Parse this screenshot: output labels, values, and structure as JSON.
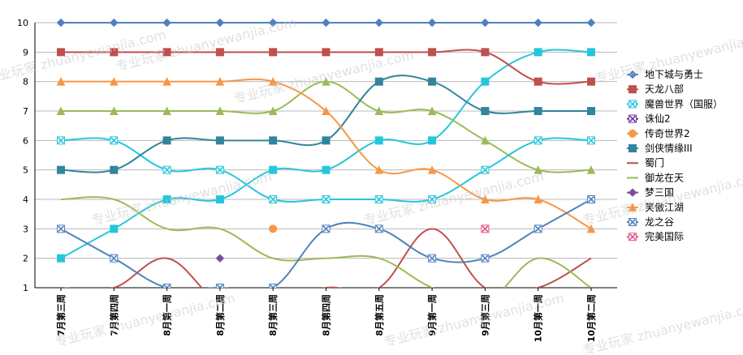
{
  "chart_data": {
    "type": "line",
    "categories": [
      "7月第三周",
      "7月第四周",
      "8月第一周",
      "8月第二周",
      "8月第三周",
      "8月第四周",
      "8月第五周",
      "9月第一周",
      "9月第三周",
      "10月第一周",
      "10月第二周"
    ],
    "ylim": [
      1,
      10
    ],
    "yticks": [
      "1",
      "2",
      "3",
      "4",
      "5",
      "6",
      "7",
      "8",
      "9",
      "10"
    ],
    "grid": true,
    "legend_position": "right",
    "series": [
      {
        "name": "地下城与勇士",
        "color": "#4f81bd",
        "marker": "diamond",
        "values": [
          10,
          10,
          10,
          10,
          10,
          10,
          10,
          10,
          10,
          10,
          10
        ]
      },
      {
        "name": "天龙八部",
        "color": "#c0504d",
        "marker": "square",
        "values": [
          9,
          9,
          9,
          9,
          9,
          9,
          9,
          9,
          9,
          8,
          8
        ]
      },
      {
        "name": "魔兽世界（国服）",
        "color": "#26c6da",
        "marker": "x",
        "values": [
          6,
          6,
          5,
          5,
          4,
          4,
          4,
          4,
          5,
          6,
          6
        ]
      },
      {
        "name": "诛仙2",
        "color": "#7030a0",
        "marker": "x",
        "values": [
          null,
          null,
          null,
          null,
          null,
          null,
          null,
          null,
          null,
          null,
          null
        ]
      },
      {
        "name": "传奇世界2",
        "color": "#f79646",
        "marker": "circle",
        "values": [
          null,
          null,
          null,
          null,
          3,
          null,
          null,
          null,
          null,
          null,
          null
        ]
      },
      {
        "name": "剑侠情缘III",
        "color": "#31859c",
        "marker": "square",
        "values": [
          5,
          5,
          6,
          6,
          6,
          6,
          8,
          8,
          7,
          7,
          7
        ]
      },
      {
        "name": "蜀门",
        "color": "#c0504d",
        "marker": "none",
        "values": [
          1,
          1,
          2,
          0.5,
          0.5,
          1,
          1,
          3,
          1,
          1,
          2
        ]
      },
      {
        "name": "御龙在天",
        "color": "#9bbb59",
        "marker": "none",
        "values": [
          4,
          4,
          3,
          3,
          2,
          2,
          2,
          1,
          0.5,
          2,
          1
        ]
      },
      {
        "name": "梦三国",
        "color": "#7d4b9e",
        "marker": "diamond",
        "values": [
          null,
          null,
          null,
          2,
          null,
          null,
          null,
          null,
          null,
          null,
          null
        ]
      },
      {
        "name": "笑傲江湖",
        "color": "#f79646",
        "marker": "triangle",
        "values": [
          8,
          8,
          8,
          8,
          8,
          7,
          5,
          5,
          4,
          4,
          3
        ]
      },
      {
        "name": "龙之谷",
        "color": "#4f81bd",
        "marker": "x",
        "values": [
          3,
          2,
          1,
          1,
          1,
          3,
          3,
          2,
          2,
          3,
          4
        ]
      },
      {
        "name": "完美国际",
        "color": "#e0508c",
        "marker": "x",
        "values": [
          null,
          null,
          null,
          null,
          null,
          null,
          null,
          null,
          3,
          null,
          null
        ]
      }
    ],
    "extra_series": [
      {
        "name": "魔兽世界（国服）",
        "color": "#26c6da",
        "marker": "square",
        "values": [
          2,
          3,
          4,
          4,
          5,
          5,
          6,
          6,
          8,
          9,
          9
        ]
      },
      {
        "name": "御龙在天",
        "color": "#9bbb59",
        "marker": "triangle",
        "values": [
          7,
          7,
          7,
          7,
          7,
          8,
          7,
          7,
          6,
          5,
          5
        ]
      },
      {
        "name": "龙之谷",
        "color": "#26c6da",
        "marker": "x",
        "values": [
          null,
          null,
          null,
          null,
          null,
          null,
          null,
          null,
          null,
          null,
          null
        ]
      }
    ]
  },
  "watermark": "专业玩家 zhuanyewanjia.com"
}
